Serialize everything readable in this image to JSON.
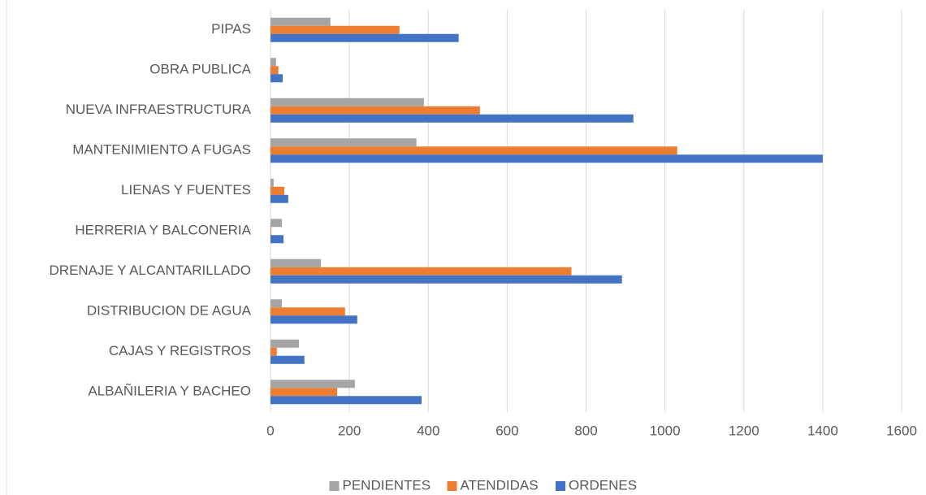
{
  "chart_data": {
    "type": "bar",
    "orientation": "horizontal",
    "categories": [
      "ALBAÑILERIA Y BACHEO",
      "CAJAS Y REGISTROS",
      "DISTRIBUCION DE AGUA",
      "DRENAJE Y ALCANTARILLADO",
      "HERRERIA Y BALCONERIA",
      "LIENAS Y FUENTES",
      "MANTENIMIENTO A FUGAS",
      "NUEVA INFRAESTRUCTURA",
      "OBRA PUBLICA",
      "PIPAS"
    ],
    "series": [
      {
        "name": "PENDIENTES",
        "color": "#a5a5a5",
        "values": [
          214,
          72,
          29,
          128,
          29,
          8,
          370,
          389,
          14,
          152
        ]
      },
      {
        "name": "ATENDIDAS",
        "color": "#ed7d31",
        "values": [
          169,
          16,
          189,
          763,
          2,
          35,
          1031,
          531,
          20,
          327
        ]
      },
      {
        "name": "ORDENES",
        "color": "#4472c4",
        "values": [
          383,
          86,
          220,
          891,
          33,
          45,
          1400,
          920,
          31,
          477
        ]
      }
    ],
    "xlim": [
      0,
      1600
    ],
    "xticks": [
      0,
      200,
      400,
      600,
      800,
      1000,
      1200,
      1400,
      1600
    ],
    "grid": true,
    "legend": "bottom"
  }
}
